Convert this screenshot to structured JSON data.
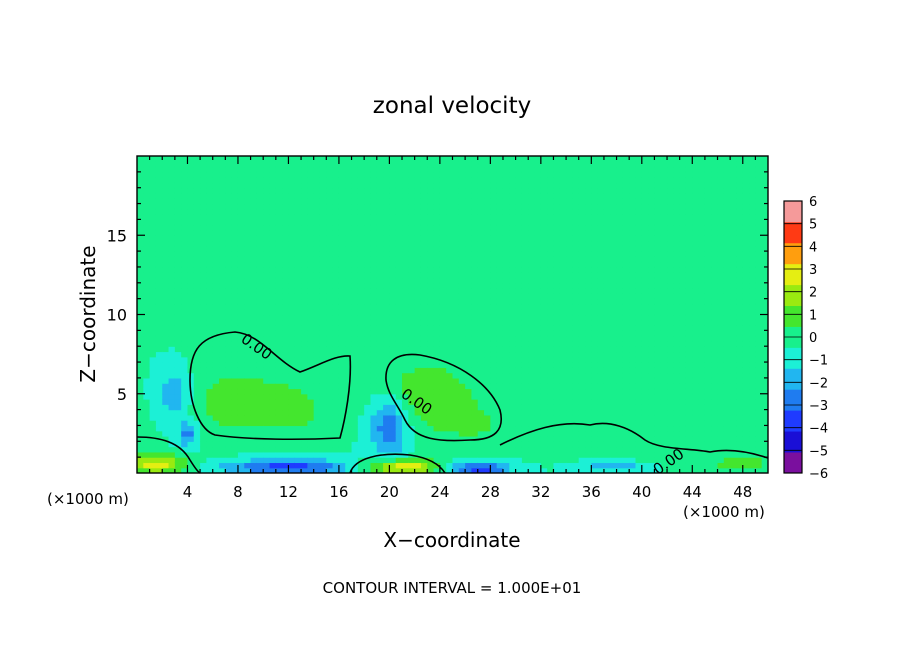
{
  "chart_data": {
    "type": "heatmap",
    "title": "zonal velocity",
    "xlabel": "X−coordinate",
    "ylabel": "Z−coordinate",
    "x_unit_left": "(×1000 m)",
    "x_unit_right": "(×1000 m)",
    "xlim": [
      0,
      50
    ],
    "ylim": [
      0,
      20
    ],
    "x_ticks": [
      "4",
      "8",
      "12",
      "16",
      "20",
      "24",
      "28",
      "32",
      "36",
      "40",
      "44",
      "48"
    ],
    "y_ticks": [
      "5",
      "10",
      "15"
    ],
    "colorbar_ticks": [
      "6",
      "5",
      "4",
      "3",
      "2",
      "1",
      "0",
      "−1",
      "−2",
      "−3",
      "−4",
      "−5",
      "−6"
    ],
    "colorbar_range": [
      -6,
      6
    ],
    "colorbar_colors": [
      "#7a0f9e",
      "#1a0fd6",
      "#1f3bff",
      "#1f7cf0",
      "#21b6f0",
      "#1cf0d6",
      "#18f08c",
      "#44e62e",
      "#9aea10",
      "#e5ee12",
      "#ff9e0e",
      "#ff3a14",
      "#f59a9a"
    ],
    "contour_labels": [
      "0.00",
      "0.00",
      "0.00"
    ],
    "contour_interval": "CONTOUR INTERVAL = 1.000E+01",
    "background_value": -0.5,
    "features": [
      {
        "x": 8,
        "z": 4.5,
        "value": 1.6,
        "sx": 4.0,
        "sz": 2.2
      },
      {
        "x": 13,
        "z": 4.0,
        "value": 1.0,
        "sx": 3.0,
        "sz": 2.0
      },
      {
        "x": 23,
        "z": 5.0,
        "value": 1.8,
        "sx": 4.0,
        "sz": 2.2
      },
      {
        "x": 27,
        "z": 3.0,
        "value": 0.9,
        "sx": 3.5,
        "sz": 1.5
      },
      {
        "x": 3,
        "z": 5.0,
        "value": -2.2,
        "sx": 1.2,
        "sz": 1.5
      },
      {
        "x": 4,
        "z": 2.5,
        "value": -2.5,
        "sx": 0.8,
        "sz": 0.8
      },
      {
        "x": 20,
        "z": 3.0,
        "value": -3.0,
        "sx": 1.5,
        "sz": 2.0
      },
      {
        "x": 1.5,
        "z": 0.6,
        "value": 3.5,
        "sx": 2.5,
        "sz": 0.6
      },
      {
        "x": 21,
        "z": 0.4,
        "value": 4.0,
        "sx": 3.0,
        "sz": 0.5
      },
      {
        "x": 12,
        "z": 0.4,
        "value": -3.5,
        "sx": 5.0,
        "sz": 0.5
      },
      {
        "x": 27,
        "z": 0.3,
        "value": -3.8,
        "sx": 2.5,
        "sz": 0.4
      },
      {
        "x": 40,
        "z": 1.5,
        "value": 1.0,
        "sx": 6.0,
        "sz": 1.2
      },
      {
        "x": 38,
        "z": 0.5,
        "value": -2.0,
        "sx": 3.0,
        "sz": 0.4
      },
      {
        "x": 48,
        "z": 0.6,
        "value": 2.0,
        "sx": 2.0,
        "sz": 0.5
      },
      {
        "x": 6,
        "z": 11.5,
        "value": 0.3,
        "sx": 8.0,
        "sz": 2.5
      }
    ]
  }
}
